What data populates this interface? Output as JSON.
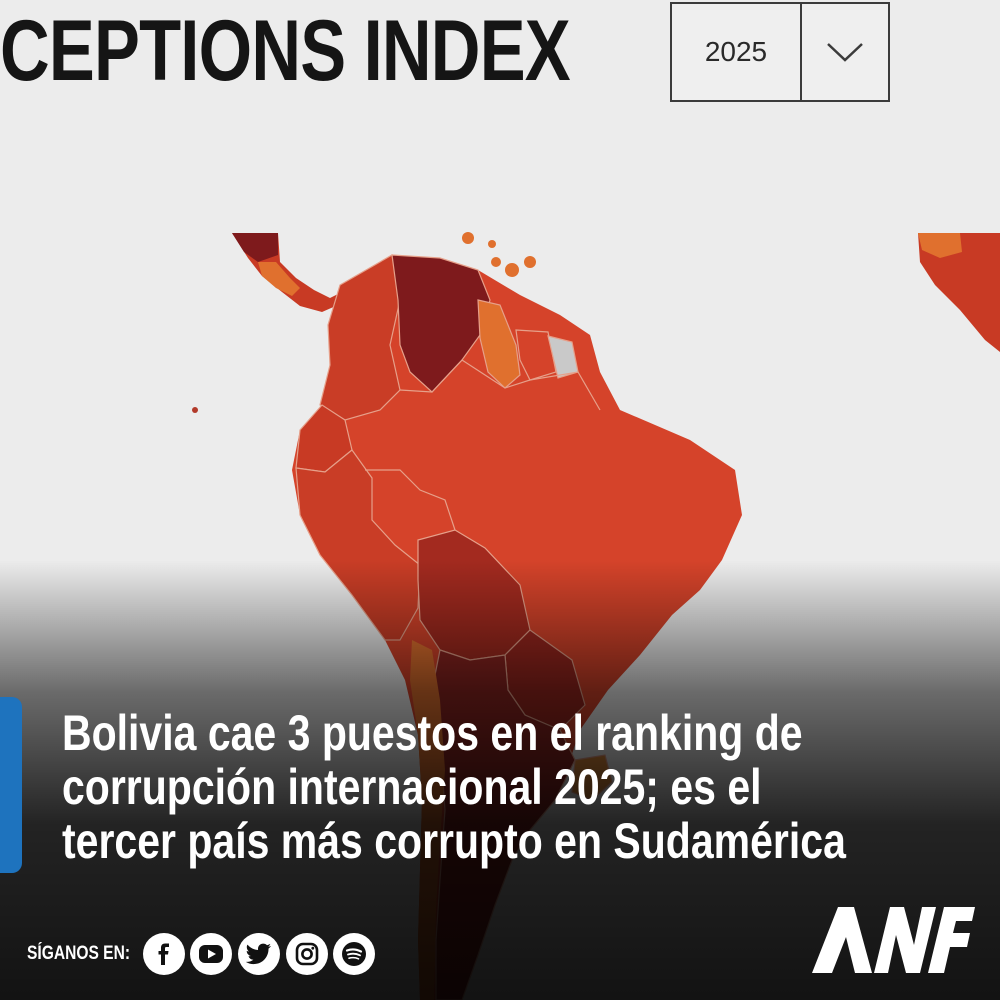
{
  "header": {
    "title": "CEPTIONS INDEX",
    "year_select": {
      "value": "2025"
    }
  },
  "article": {
    "headline_lines": [
      "Bolivia cae 3 puestos en el ranking de",
      "corrupción internacional 2025; es el",
      "tercer país más corrupto en Sudamérica"
    ]
  },
  "footer": {
    "follow_label": "SÍGANOS EN:",
    "social_icons": [
      "facebook-icon",
      "youtube-icon",
      "twitter-icon",
      "instagram-icon",
      "spotify-icon"
    ],
    "brand": "ANF"
  },
  "colors": {
    "very_high_corruption": "#7e1a1c",
    "high_corruption": "#a32a1f",
    "medium_high": "#c83a24",
    "medium": "#d5432a",
    "lower": "#e0702e",
    "no_data": "#c9c9c9",
    "accent": "#1e73be"
  }
}
